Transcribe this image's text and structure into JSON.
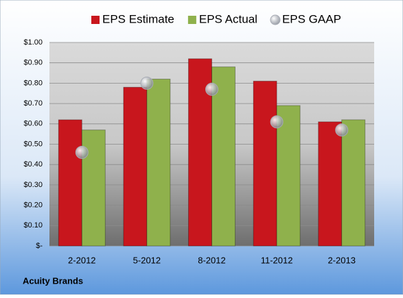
{
  "chart_data": {
    "type": "bar",
    "categories": [
      "2-2012",
      "5-2012",
      "8-2012",
      "11-2012",
      "2-2013"
    ],
    "series": [
      {
        "name": "EPS Estimate",
        "color": "#c8161d",
        "values": [
          0.62,
          0.78,
          0.92,
          0.81,
          0.61
        ]
      },
      {
        "name": "EPS Actual",
        "color": "#8fb14c",
        "values": [
          0.57,
          0.82,
          0.88,
          0.69,
          0.62
        ]
      },
      {
        "name": "EPS GAAP",
        "color": "#a8acb4",
        "type": "scatter",
        "values": [
          0.46,
          0.8,
          0.77,
          0.61,
          0.57
        ]
      }
    ],
    "ylim": [
      0,
      1
    ],
    "yticks": [
      {
        "value": 0,
        "label": "$-"
      },
      {
        "value": 0.1,
        "label": "$0.10"
      },
      {
        "value": 0.2,
        "label": "$0.20"
      },
      {
        "value": 0.3,
        "label": "$0.30"
      },
      {
        "value": 0.4,
        "label": "$0.40"
      },
      {
        "value": 0.5,
        "label": "$0.50"
      },
      {
        "value": 0.6,
        "label": "$0.60"
      },
      {
        "value": 0.7,
        "label": "$0.70"
      },
      {
        "value": 0.8,
        "label": "$0.80"
      },
      {
        "value": 0.9,
        "label": "$0.90"
      },
      {
        "value": 1,
        "label": "$1.00"
      }
    ],
    "grid": true,
    "legend": "top",
    "footer": "Acuity Brands"
  }
}
